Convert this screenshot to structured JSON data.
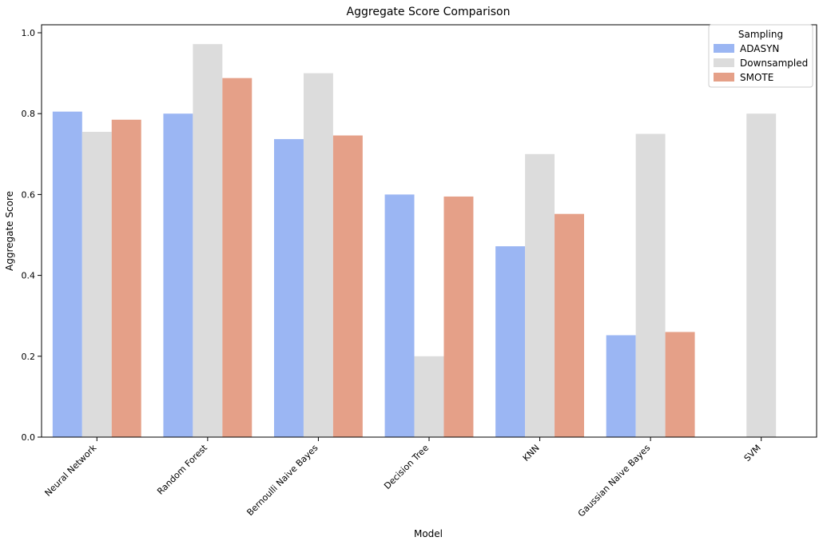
{
  "chart_data": {
    "type": "bar",
    "title": "Aggregate Score Comparison",
    "xlabel": "Model",
    "ylabel": "Aggregate Score",
    "ylim": [
      0,
      1.0
    ],
    "yticks": [
      "0.0",
      "0.2",
      "0.4",
      "0.6",
      "0.8",
      "1.0"
    ],
    "categories": [
      "Neural Network",
      "Random Forest",
      "Bernoulli Naive Bayes",
      "Decision Tree",
      "KNN",
      "Gaussian Naive Bayes",
      "SVM"
    ],
    "series": [
      {
        "name": "ADASYN",
        "color": "#9bb6f3",
        "values": [
          0.805,
          0.8,
          0.737,
          0.6,
          0.472,
          0.252,
          null
        ]
      },
      {
        "name": "Downsampled",
        "color": "#dcdcdc",
        "values": [
          0.755,
          0.972,
          0.9,
          0.2,
          0.7,
          0.75,
          0.8
        ]
      },
      {
        "name": "SMOTE",
        "color": "#e5a088",
        "values": [
          0.785,
          0.888,
          0.746,
          0.595,
          0.552,
          0.26,
          null
        ]
      }
    ],
    "legend": {
      "title": "Sampling",
      "position": "top-right"
    },
    "grid": false
  }
}
